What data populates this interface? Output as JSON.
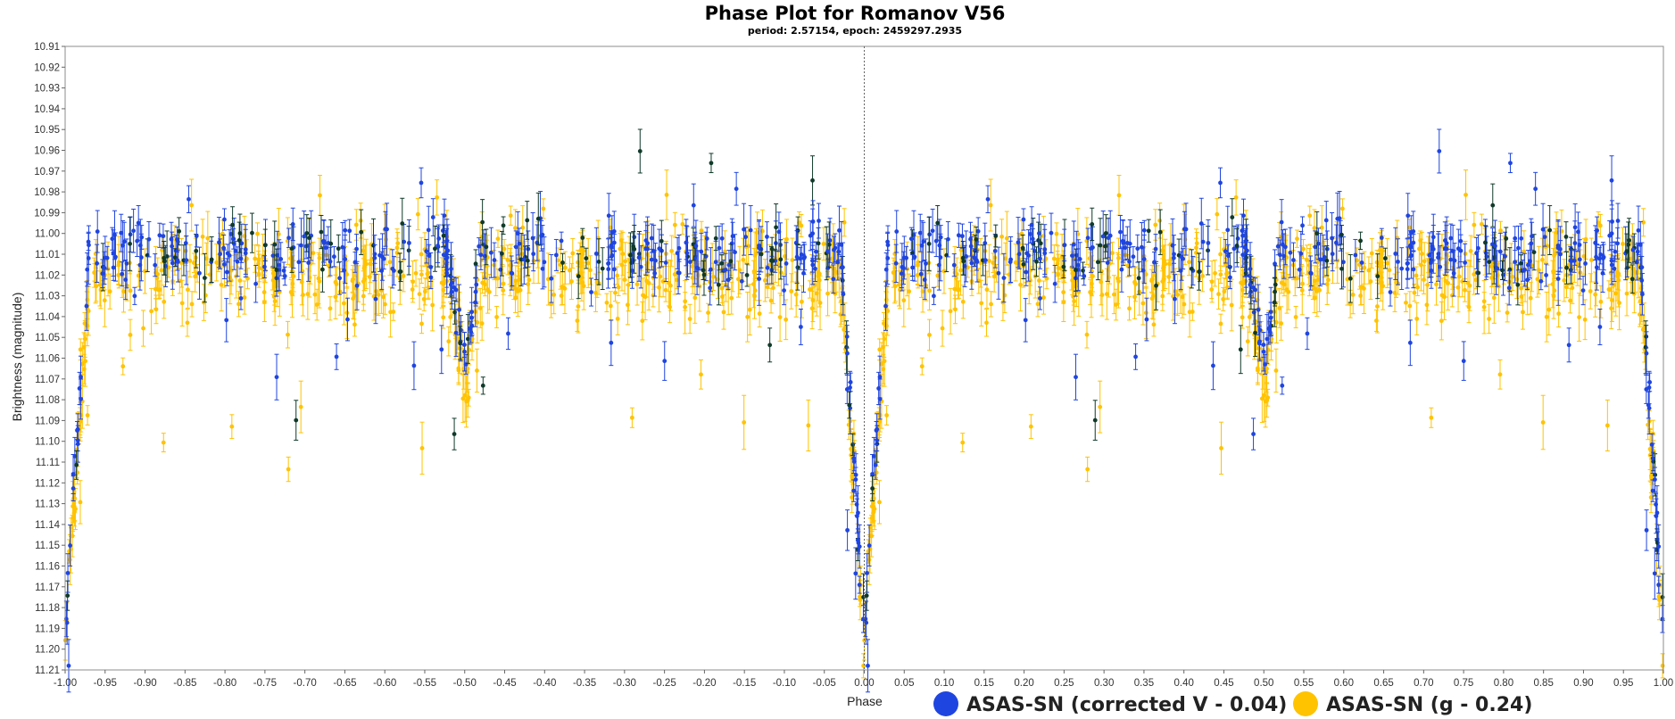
{
  "chart_data": {
    "type": "scatter",
    "title": "Phase Plot for Romanov V56",
    "subtitle": "period: 2.57154, epoch: 2459297.2935",
    "xlabel": "Phase",
    "ylabel": "Brightness (magnitude)",
    "xlim": [
      -1.0,
      1.0
    ],
    "ylim": [
      10.91,
      11.21
    ],
    "y_inverted": true,
    "x_ticks": [
      "-1.00",
      "-0.95",
      "-0.90",
      "-0.85",
      "-0.80",
      "-0.75",
      "-0.70",
      "-0.65",
      "-0.60",
      "-0.55",
      "-0.50",
      "-0.45",
      "-0.40",
      "-0.35",
      "-0.30",
      "-0.25",
      "-0.20",
      "-0.15",
      "-0.10",
      "-0.05",
      "0.00",
      "0.05",
      "0.10",
      "0.15",
      "0.20",
      "0.25",
      "0.30",
      "0.35",
      "0.40",
      "0.45",
      "0.50",
      "0.55",
      "0.60",
      "0.65",
      "0.70",
      "0.75",
      "0.80",
      "0.85",
      "0.90",
      "0.95",
      "1.00"
    ],
    "y_ticks": [
      "10.91",
      "10.92",
      "10.93",
      "10.94",
      "10.95",
      "10.96",
      "10.97",
      "10.98",
      "10.99",
      "11.00",
      "11.01",
      "11.02",
      "11.03",
      "11.04",
      "11.05",
      "11.06",
      "11.07",
      "11.08",
      "11.09",
      "11.10",
      "11.11",
      "11.12",
      "11.13",
      "11.14",
      "11.15",
      "11.16",
      "11.17",
      "11.18",
      "11.19",
      "11.20",
      "11.21"
    ],
    "grid": false,
    "legend_position": "bottom-right",
    "zero_line": true,
    "series": [
      {
        "name": "ASAS-SN (corrected V - 0.04)",
        "color": "#1f45e0",
        "baseline": 11.01,
        "scatter_sd": 0.015,
        "primary_eclipse": {
          "phase": 0.0,
          "depth": 11.19
        },
        "secondary_eclipse": {
          "phase": 0.5,
          "depth": 11.06
        },
        "points_shown_in_both_cycles": true
      },
      {
        "name": "ASAS-SN (g - 0.24)",
        "color": "#ffc300",
        "baseline": 11.02,
        "scatter_sd": 0.02,
        "primary_eclipse": {
          "phase": 0.0,
          "depth": 11.2
        },
        "secondary_eclipse": {
          "phase": 0.5,
          "depth": 11.07
        },
        "points_shown_in_both_cycles": true
      }
    ],
    "overlap_color": "#103a2a"
  }
}
